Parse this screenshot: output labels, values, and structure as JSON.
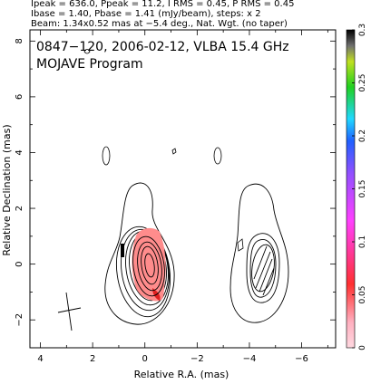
{
  "header_lines": [
    "Ipeak = 636.0, Ppeak = 11.2, I RMS = 0.45, P RMS = 0.45",
    "Ibase = 1.40, Pbase = 1.41 (mJy/beam), steps: x 2",
    "Beam: 1.34x0.52 mas at −5.4 deg., Nat. Wgt. (no taper)"
  ],
  "chart_data": {
    "type": "contour",
    "title": "0847−120, 2006-02-12, VLBA 15.4 GHz",
    "subtitle": "MOJAVE Program",
    "xlabel": "Relative R.A. (mas)",
    "ylabel": "Relative Declination (mas)",
    "xlim": [
      4.4,
      -7.3
    ],
    "ylim": [
      -3.0,
      8.4
    ],
    "xticks": [
      4,
      2,
      0,
      -2,
      -4,
      -6
    ],
    "yticks": [
      -2,
      0,
      2,
      4,
      6,
      8
    ],
    "colorbar": {
      "min": 0,
      "max": 0.3,
      "ticks": [
        0,
        0.05,
        0.1,
        0.15,
        0.2,
        0.25,
        0.3
      ],
      "colors": [
        "#ffd8e0",
        "#ff3030",
        "#ff40ff",
        "#2060ff",
        "#20d8ff",
        "#20d020",
        "#000000"
      ]
    },
    "left_component": {
      "ra": 0.0,
      "dec": 0.0,
      "levels": 8
    },
    "right_component": {
      "ra": -4.0,
      "dec": 0.0,
      "levels": 4
    },
    "beam": {
      "ra": 2.9,
      "dec": -1.7,
      "major": 1.34,
      "minor": 0.52,
      "pa": -5.4
    }
  }
}
